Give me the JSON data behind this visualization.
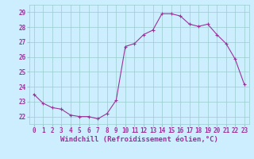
{
  "x": [
    0,
    1,
    2,
    3,
    4,
    5,
    6,
    7,
    8,
    9,
    10,
    11,
    12,
    13,
    14,
    15,
    16,
    17,
    18,
    19,
    20,
    21,
    22,
    23
  ],
  "y": [
    23.5,
    22.9,
    22.6,
    22.5,
    22.1,
    22.0,
    22.0,
    21.85,
    22.2,
    23.1,
    26.7,
    26.9,
    27.5,
    27.8,
    28.9,
    28.9,
    28.75,
    28.2,
    28.05,
    28.2,
    27.5,
    26.9,
    25.85,
    24.15
  ],
  "xlim": [
    -0.5,
    23.5
  ],
  "ylim": [
    21.5,
    29.5
  ],
  "yticks": [
    22,
    23,
    24,
    25,
    26,
    27,
    28,
    29
  ],
  "xticks": [
    0,
    1,
    2,
    3,
    4,
    5,
    6,
    7,
    8,
    9,
    10,
    11,
    12,
    13,
    14,
    15,
    16,
    17,
    18,
    19,
    20,
    21,
    22,
    23
  ],
  "xlabel": "Windchill (Refroidissement éolien,°C)",
  "line_color": "#993399",
  "marker": "+",
  "bg_color": "#cceeff",
  "grid_color": "#99cccc",
  "label_color": "#993399",
  "tick_fontsize": 5.5,
  "xlabel_fontsize": 6.5
}
